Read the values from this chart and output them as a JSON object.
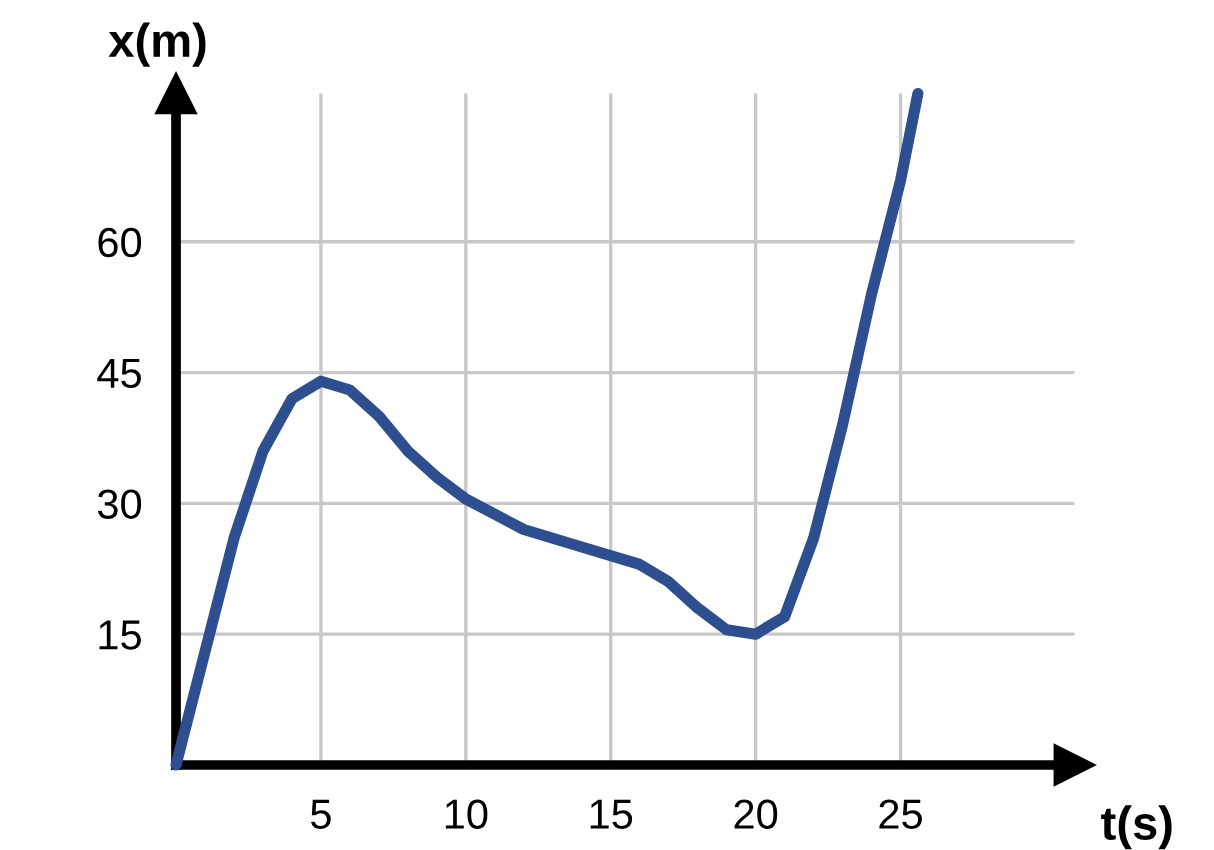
{
  "chart_data": {
    "type": "line",
    "xlabel": "t(s)",
    "ylabel": "x(m)",
    "x": [
      0,
      1,
      2,
      3,
      4,
      5,
      6,
      7,
      8,
      9,
      10,
      12,
      14,
      16,
      17,
      18,
      19,
      20,
      21,
      22,
      23,
      24,
      25,
      25.6
    ],
    "series": [
      {
        "color": "#2e4f8f",
        "values": [
          0,
          13,
          26,
          36,
          42,
          44,
          43,
          40,
          36,
          33,
          30.5,
          27,
          25,
          23,
          21,
          18,
          15.5,
          15,
          17,
          26,
          39,
          54,
          67,
          77
        ]
      }
    ],
    "xlim": [
      0,
      31
    ],
    "ylim": [
      0,
      77
    ],
    "xticks": [
      5,
      10,
      15,
      20,
      25
    ],
    "yticks": [
      15,
      30,
      45,
      60
    ],
    "grid": true,
    "marker": "none",
    "line_style": "solid"
  }
}
